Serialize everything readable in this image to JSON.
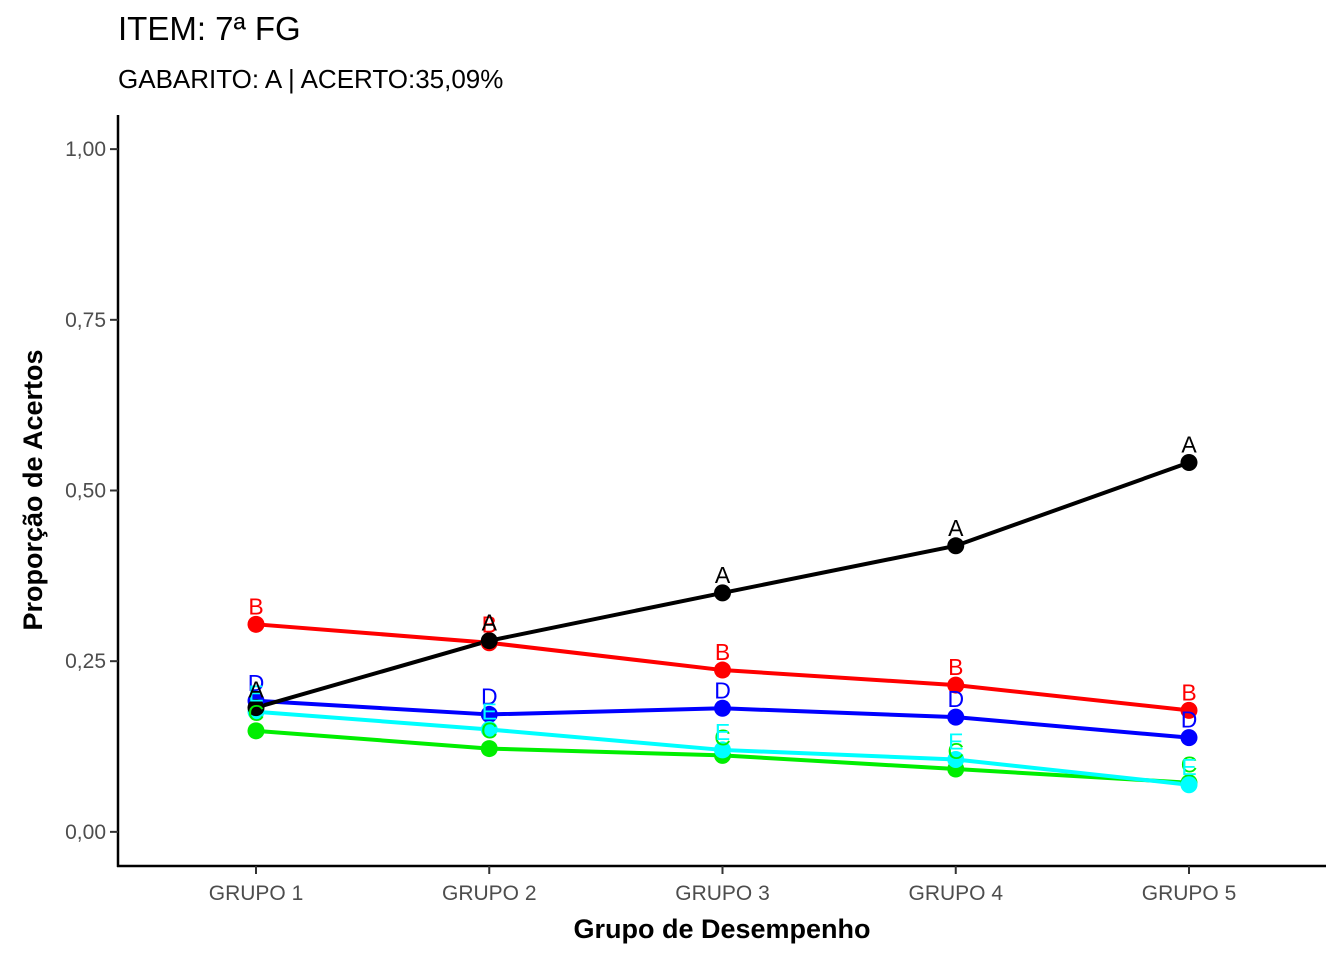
{
  "chart_data": {
    "type": "line",
    "title": "ITEM: 7ª FG",
    "subtitle": "GABARITO: A | ACERTO:35,09%",
    "xlabel": "Grupo de Desempenho",
    "ylabel": "Proporção de Acertos",
    "categories": [
      "GRUPO 1",
      "GRUPO 2",
      "GRUPO 3",
      "GRUPO 4",
      "GRUPO 5"
    ],
    "ylim": [
      -0.05,
      1.05
    ],
    "yticks": [
      0,
      0.25,
      0.5,
      0.75,
      1.0
    ],
    "ytick_labels": [
      "0,00",
      "0,25",
      "0,50",
      "0,75",
      "1,00"
    ],
    "grid": false,
    "series": [
      {
        "name": "A",
        "color": "#000000",
        "values": [
          0.182,
          0.28,
          0.35,
          0.419,
          0.541
        ]
      },
      {
        "name": "B",
        "color": "#ff0000",
        "values": [
          0.304,
          0.277,
          0.237,
          0.215,
          0.178
        ]
      },
      {
        "name": "C",
        "color": "#00ee00",
        "values": [
          0.148,
          0.122,
          0.112,
          0.092,
          0.072
        ]
      },
      {
        "name": "D",
        "color": "#0000ff",
        "values": [
          0.192,
          0.172,
          0.181,
          0.168,
          0.138
        ]
      },
      {
        "name": "E",
        "color": "#00ffff",
        "values": [
          0.176,
          0.15,
          0.12,
          0.106,
          0.069
        ]
      }
    ]
  }
}
